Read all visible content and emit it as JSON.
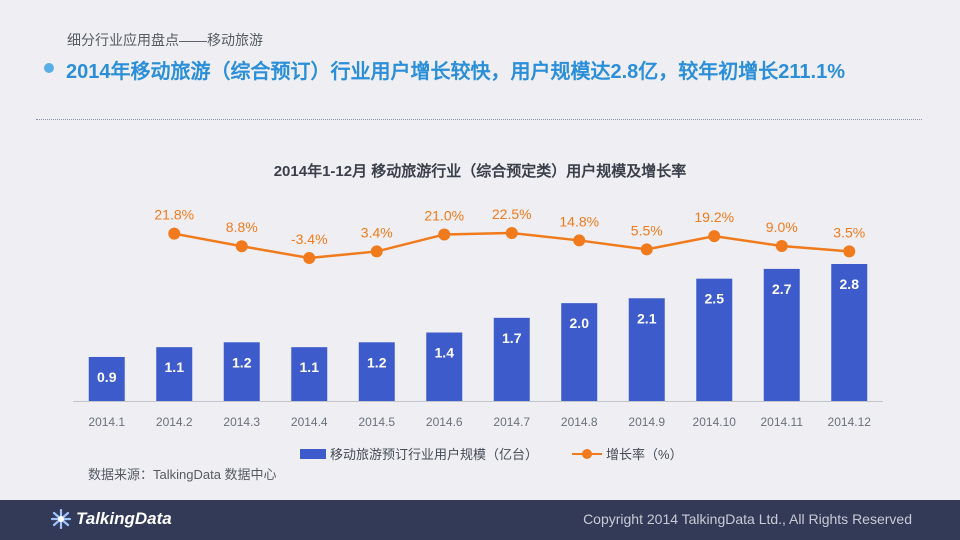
{
  "header": {
    "breadcrumb": "细分行业应用盘点——移动旅游",
    "headline": "2014年移动旅游（综合预订）行业用户增长较快，用户规模达2.8亿，较年初增长211.1%"
  },
  "colors": {
    "bar": "#3e5bcc",
    "line": "#f07a1c",
    "axis": "#c3c5cc",
    "footer_bg": "#323a57",
    "headline": "#2a8fd8"
  },
  "chart_data": {
    "type": "bar",
    "title": "2014年1-12月 移动旅游行业（综合预定类）用户规模及增长率",
    "categories": [
      "2014.1",
      "2014.2",
      "2014.3",
      "2014.4",
      "2014.5",
      "2014.6",
      "2014.7",
      "2014.8",
      "2014.9",
      "2014.10",
      "2014.11",
      "2014.12"
    ],
    "series": [
      {
        "name": "移动旅游预订行业用户规模（亿台）",
        "type": "bar",
        "values": [
          0.9,
          1.1,
          1.2,
          1.1,
          1.2,
          1.4,
          1.7,
          2.0,
          2.1,
          2.5,
          2.7,
          2.8
        ],
        "labels": [
          "0.9",
          "1.1",
          "1.2",
          "1.1",
          "1.2",
          "1.4",
          "1.7",
          "2.0",
          "2.1",
          "2.5",
          "2.7",
          "2.8"
        ]
      },
      {
        "name": "增长率（%）",
        "type": "line",
        "values": [
          null,
          21.8,
          8.8,
          -3.4,
          3.4,
          21.0,
          22.5,
          14.8,
          5.5,
          19.2,
          9.0,
          3.5
        ],
        "labels": [
          "",
          "21.8%",
          "8.8%",
          "-3.4%",
          "3.4%",
          "21.0%",
          "22.5%",
          "14.8%",
          "5.5%",
          "19.2%",
          "9.0%",
          "3.5%"
        ]
      }
    ],
    "ylim_bar": [
      0,
      3.0
    ],
    "ylim_line": [
      -5,
      25
    ],
    "grid": false,
    "legend_position": "bottom"
  },
  "legend": {
    "bar_label": "移动旅游预订行业用户规模（亿台）",
    "line_label": "增长率（%）"
  },
  "source": "数据来源：TalkingData 数据中心",
  "footer": {
    "logo_text": "TalkingData",
    "copyright": "Copyright 2014 TalkingData Ltd., All Rights Reserved"
  }
}
